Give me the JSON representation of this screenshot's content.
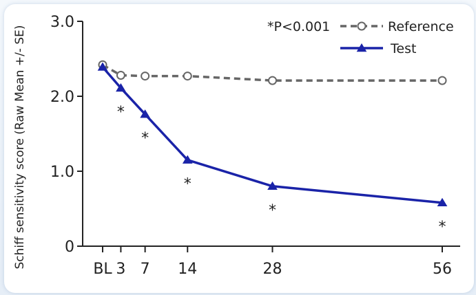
{
  "chart_data": {
    "type": "line",
    "ylabel": "Schiff sensitivity score (Raw Mean +/- SE)",
    "xlabel": "",
    "x_ticks": [
      {
        "label": "BL",
        "value": 0
      },
      {
        "label": "3",
        "value": 3
      },
      {
        "label": "7",
        "value": 7
      },
      {
        "label": "14",
        "value": 14
      },
      {
        "label": "28",
        "value": 28
      },
      {
        "label": "56",
        "value": 56
      }
    ],
    "y_ticks": [
      {
        "label": "0",
        "value": 0
      },
      {
        "label": "1.0",
        "value": 1.0
      },
      {
        "label": "2.0",
        "value": 2.0
      },
      {
        "label": "3.0",
        "value": 3.0
      }
    ],
    "ylim": [
      0,
      3.0
    ],
    "x": [
      0,
      3,
      7,
      14,
      28,
      56
    ],
    "series": [
      {
        "name": "Reference",
        "values": [
          2.42,
          2.28,
          2.27,
          2.27,
          2.21,
          2.21
        ],
        "color": "#666666",
        "style": "dashed",
        "marker": "open-circle"
      },
      {
        "name": "Test",
        "values": [
          2.39,
          2.11,
          1.76,
          1.15,
          0.8,
          0.58
        ],
        "color": "#1a23a8",
        "style": "solid",
        "marker": "filled-triangle"
      }
    ],
    "significance_marker": "*",
    "significant_x": [
      3,
      7,
      14,
      28,
      56
    ],
    "legend_note": "*P<0.001",
    "legend_placement": "top-right",
    "grid": false
  }
}
